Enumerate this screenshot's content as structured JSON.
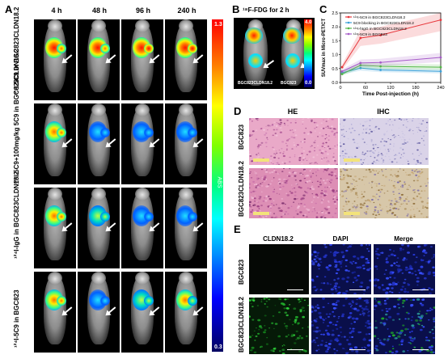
{
  "panels": {
    "a": "A",
    "b": "B",
    "c": "C",
    "d": "D",
    "e": "E"
  },
  "panel_a": {
    "timepoints": [
      "4 h",
      "48 h",
      "96 h",
      "240 h"
    ],
    "rows": [
      "¹²⁴I-5C9 in BGC823CLDN18.2",
      "¹²⁴I-5C9+100mg/kg 5C9 in BGC823CLDN18.2",
      "¹²⁴I-IgG in BGC823CLDN18.2",
      "¹²⁴I-5C9 in BGC823"
    ],
    "colorbar": {
      "max": "1.3",
      "min": "0.3",
      "unit": "ABS"
    }
  },
  "panel_b": {
    "title": "¹⁸F-FDG for 2 h",
    "labels": [
      "BGC823CLDN18.2",
      "BGC823"
    ],
    "colorbar": {
      "max": "4.0",
      "min": "0.0"
    }
  },
  "panel_d": {
    "cols": [
      "HE",
      "IHC"
    ],
    "rows": [
      "BGC823",
      "BGC823CLDN18.2"
    ],
    "scale": "100 μm"
  },
  "panel_e": {
    "cols": [
      "CLDN18.2",
      "DAPI",
      "Merge"
    ],
    "rows": [
      "BGC823",
      "BGC823CLDN18.2"
    ],
    "scale": "100 μm"
  },
  "colors": {
    "hot_red": "#ff1a00",
    "hot_yellow": "#ffee00",
    "he_pink": "#e9a9c8",
    "ihc_tan": "#d7c7a9",
    "dapi_blue": "#1b2cc6",
    "cldn_green": "#1faa2a"
  },
  "chart_data": {
    "type": "line",
    "xlabel": "Time Post-injection (h)",
    "ylabel": "SUVmax in Micro-PET/CT",
    "xlim": [
      0,
      240
    ],
    "ylim": [
      0,
      2.5
    ],
    "xticks": [
      0,
      60,
      120,
      180,
      240
    ],
    "yticks": [
      0.0,
      0.5,
      1.0,
      1.5,
      2.0,
      2.5
    ],
    "legend_position": "top-left",
    "series": [
      {
        "name": "¹²⁴I-5C9 in BGC823CLDN18.2",
        "color": "#e8383d",
        "x": [
          4,
          48,
          96,
          240
        ],
        "values": [
          0.55,
          1.6,
          1.7,
          2.25
        ]
      },
      {
        "name": "5C9 blocking in BGC823CLDN18.2",
        "color": "#3aa0d8",
        "x": [
          4,
          48,
          96,
          240
        ],
        "values": [
          0.35,
          0.52,
          0.45,
          0.4
        ]
      },
      {
        "name": "¹²⁴I-hIgG in BGC823CLDN18.2",
        "color": "#53b848",
        "x": [
          4,
          48,
          96,
          240
        ],
        "values": [
          0.3,
          0.62,
          0.58,
          0.55
        ]
      },
      {
        "name": "¹²⁴I-5C9 in BGC823",
        "color": "#a65cc8",
        "x": [
          4,
          48,
          96,
          240
        ],
        "values": [
          0.4,
          0.7,
          0.72,
          0.9
        ]
      }
    ]
  }
}
